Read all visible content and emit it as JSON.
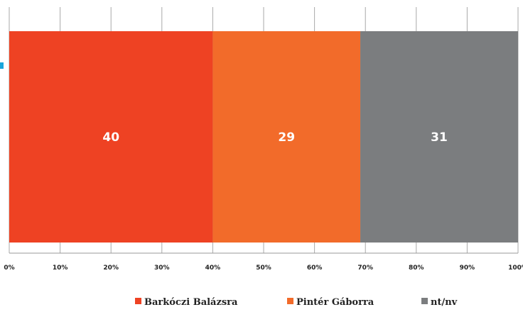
{
  "chart_data": {
    "type": "bar",
    "orientation": "horizontal",
    "stacked": true,
    "categories": [
      ""
    ],
    "series": [
      {
        "name": "Barkóczi Balázsra",
        "values": [
          40
        ],
        "color": "#ee4223"
      },
      {
        "name": "Pintér Gáborra",
        "values": [
          29
        ],
        "color": "#f26b2a"
      },
      {
        "name": "nt/nv",
        "values": [
          31
        ],
        "color": "#7b7d7f"
      }
    ],
    "xlim": [
      0,
      100
    ],
    "x_ticks": [
      "0%",
      "10%",
      "20%",
      "30%",
      "40%",
      "50%",
      "60%",
      "70%",
      "80%",
      "90%",
      "100%"
    ],
    "grid": "vertical",
    "legend": "bottom-center",
    "data_labels": [
      "40",
      "29",
      "31"
    ]
  }
}
